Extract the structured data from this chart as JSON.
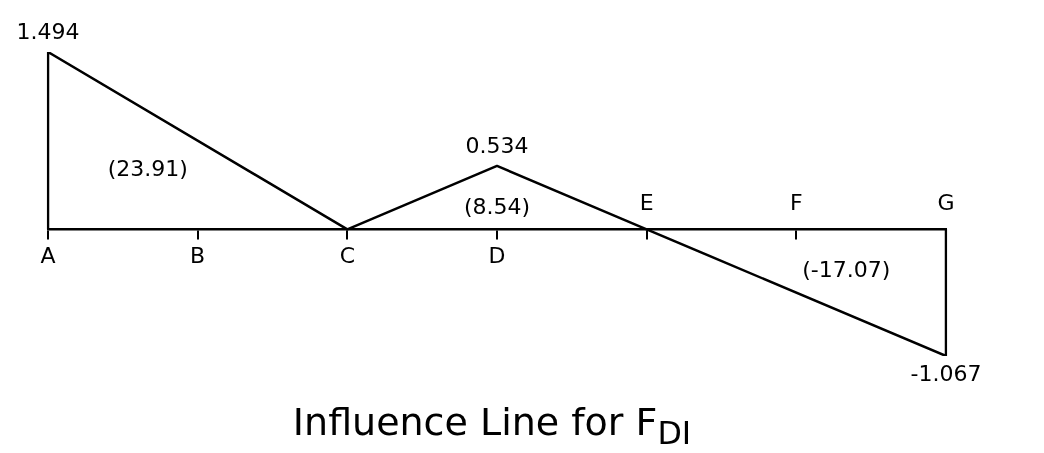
{
  "chart_data": {
    "type": "line",
    "title": "Influence Line for F$_{DI}$",
    "categories": [
      "A",
      "B",
      "C",
      "D",
      "E",
      "F",
      "G"
    ],
    "series": [
      {
        "color": "#000000",
        "x": [
          "A",
          "A",
          "C",
          "D",
          "E",
          "G",
          "G"
        ],
        "values": [
          0,
          1.494,
          0,
          0.534,
          0,
          -1.067,
          0
        ],
        "value_labels": [
          null,
          "1.494",
          null,
          "0.534",
          null,
          "-1.067",
          null
        ]
      }
    ],
    "annotations": [
      "(23.91)",
      "(8.54)",
      "(-17.07)"
    ],
    "grid": false,
    "legend": false,
    "marker": "none",
    "line_style": "solid",
    "tick_labels": "x"
  }
}
